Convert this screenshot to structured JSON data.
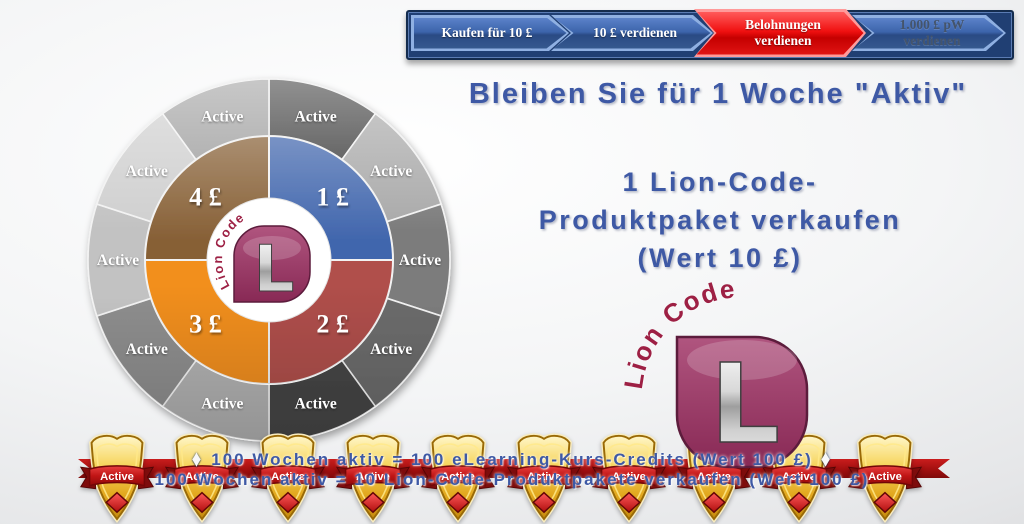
{
  "nav": {
    "steps": [
      {
        "label": "Kaufen für 10 £",
        "state": "done"
      },
      {
        "label": "10 £ verdienen",
        "state": "done"
      },
      {
        "label": "Belohnungen verdienen",
        "state": "active"
      },
      {
        "label": "1.000 £ pW verdienen",
        "state": "upcoming"
      }
    ]
  },
  "headings": {
    "title": "Bleiben Sie für 1 Woche \"Aktiv\"",
    "subtitle_lines": [
      "1 Lion-Code-",
      "Produktpaket verkaufen",
      "(Wert 10 £)"
    ]
  },
  "wheel": {
    "center_logo": {
      "brand": "Lion Code",
      "letter": "L"
    },
    "outer_ring": [
      {
        "label": "Active",
        "color": "#414141"
      },
      {
        "label": "Active",
        "color": "#a9a9a9"
      },
      {
        "label": "Active",
        "color": "#7c7c7c"
      },
      {
        "label": "Active",
        "color": "#6b6b6b"
      },
      {
        "label": "Active",
        "color": "#454545"
      },
      {
        "label": "Active",
        "color": "#b0b0b0"
      },
      {
        "label": "Active",
        "color": "#8d8d8d"
      },
      {
        "label": "Active",
        "color": "#c2c2c2"
      },
      {
        "label": "Active",
        "color": "#cfcfcf"
      },
      {
        "label": "Active",
        "color": "#a0a0a0"
      }
    ],
    "inner_ring": [
      {
        "label": "1 £",
        "color": "#4166ad"
      },
      {
        "label": "2 £",
        "color": "#b04f4b"
      },
      {
        "label": "3 £",
        "color": "#f28f1d"
      },
      {
        "label": "4 £",
        "color": "#876036"
      }
    ]
  },
  "logo": {
    "brand": "Lion Code",
    "letter": "L"
  },
  "banner": {
    "shields": [
      "Active",
      "Active",
      "Active",
      "Active",
      "Active",
      "Active",
      "Active",
      "Active",
      "Active",
      "Active"
    ],
    "diamond": "♦",
    "line1": "100 Wochen aktiv = 100 eLearning-Kurs-Credits (Wert 100 £)",
    "line2": "100 Wochen aktiv = 10 Lion-Code-Produktpakete verkaufen (Wert 100 £)"
  },
  "colors": {
    "heading": "#3e59a5",
    "bottom_text": "#3e59a5",
    "nav_blue": "#3a62a7",
    "nav_red": "#f20000",
    "nav_muted_text": "#44546b",
    "gold": "#e7b83a",
    "ribbon_red": "#a81212",
    "logo_maroon": "#96345f",
    "logo_text_red": "#9d2044"
  }
}
